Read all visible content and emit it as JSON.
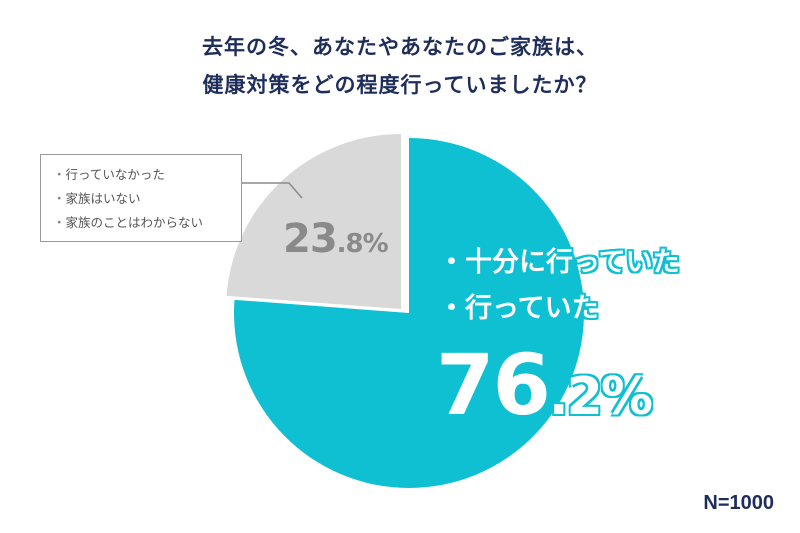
{
  "title": {
    "line1": "去年の冬、あなたやあなたのご家族は、",
    "line2": "健康対策をどの程度行っていましたか？"
  },
  "n_label": "N=1000",
  "small_percent": {
    "int": "23",
    "dec": ".8%"
  },
  "big_percent": {
    "int": "76",
    "dec": ".2%"
  },
  "legend_small": [
    "行っていなかった",
    "家族はいない",
    "家族のことはわからない"
  ],
  "legend_main": [
    "十分に行っていた",
    "行っていた"
  ],
  "colors": {
    "main": "#0fc0d3",
    "other": "#d9d9d9",
    "title": "#1f2d5a"
  },
  "chart_data": {
    "type": "pie",
    "title": "去年の冬、あなたやあなたのご家族は、健康対策をどの程度行っていましたか？",
    "categories": [
      "十分に行っていた・行っていた",
      "行っていなかった・家族はいない・家族のことはわからない"
    ],
    "values": [
      76.2,
      23.8
    ],
    "colors": [
      "#0fc0d3",
      "#d9d9d9"
    ],
    "n": 1000
  }
}
